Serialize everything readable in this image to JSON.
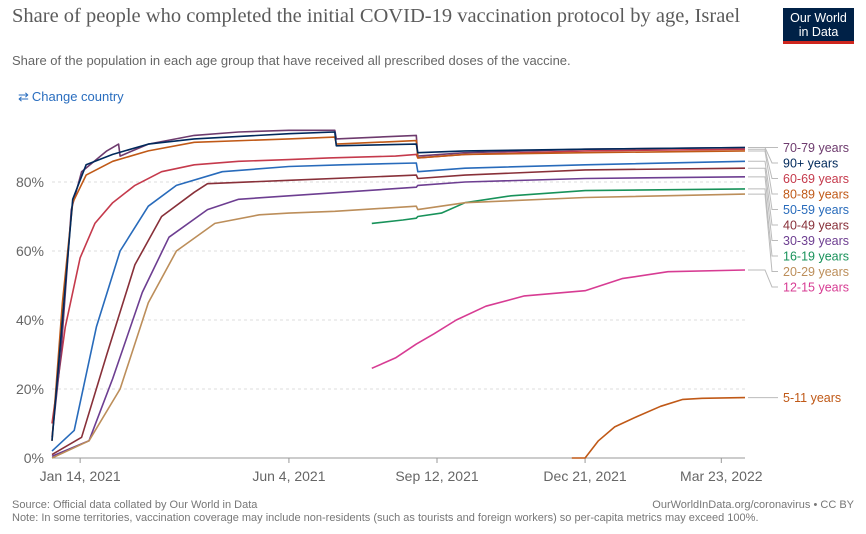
{
  "header": {
    "title": "Share of people who completed the initial COVID-19 vaccination protocol by age, Israel",
    "subtitle": "Share of the population in each age group that have received all prescribed doses of the vaccine.",
    "logo_line1": "Our World",
    "logo_line2": "in Data",
    "change_country_icon": "swap-arrows-icon",
    "change_country_label": "Change country"
  },
  "footer": {
    "source": "Source: Official data collated by Our World in Data",
    "url": "OurWorldInData.org/coronavirus • CC BY",
    "note": "Note: In some territories, vaccination coverage may include non-residents (such as tourists and foreign workers) so per-capita metrics may exceed 100%."
  },
  "chart_data": {
    "type": "line",
    "title": "Share of people who completed the initial COVID-19 vaccination protocol by age, Israel",
    "ylim": [
      0,
      100
    ],
    "yticks": [
      0,
      20,
      40,
      60,
      80
    ],
    "ytick_labels": [
      "0%",
      "20%",
      "40%",
      "60%",
      "80%"
    ],
    "xlim": [
      "2020-12-26",
      "2022-04-08"
    ],
    "xticks": [
      "2021-01-14",
      "2021-06-04",
      "2021-09-12",
      "2021-12-21",
      "2022-03-23"
    ],
    "xtick_labels": [
      "Jan 14, 2021",
      "Jun 4, 2021",
      "Sep 12, 2021",
      "Dec 21, 2021",
      "Mar 23, 2022"
    ],
    "grid": "horizontal dashed",
    "legend": "right, inline labels",
    "series": [
      {
        "name": "60-69 years",
        "color": "#c53a4c",
        "points": [
          [
            "2020-12-26",
            10
          ],
          [
            "2021-01-04",
            38
          ],
          [
            "2021-01-14",
            58
          ],
          [
            "2021-01-24",
            68
          ],
          [
            "2021-02-05",
            74
          ],
          [
            "2021-02-20",
            79
          ],
          [
            "2021-03-10",
            83
          ],
          [
            "2021-04-01",
            85
          ],
          [
            "2021-05-01",
            86
          ],
          [
            "2021-06-04",
            86.5
          ],
          [
            "2021-07-01",
            87
          ],
          [
            "2021-08-15",
            87.5
          ],
          [
            "2021-08-29",
            88
          ],
          [
            "2021-08-30",
            87
          ],
          [
            "2021-10-01",
            88
          ],
          [
            "2021-12-21",
            89
          ],
          [
            "2022-04-08",
            89.5
          ]
        ]
      },
      {
        "name": "70-79 years",
        "color": "#6e3b6e",
        "points": [
          [
            "2020-12-26",
            6
          ],
          [
            "2021-01-01",
            30
          ],
          [
            "2021-01-08",
            72
          ],
          [
            "2021-01-15",
            83
          ],
          [
            "2021-02-01",
            89
          ],
          [
            "2021-02-09",
            91
          ],
          [
            "2021-02-10",
            87.5
          ],
          [
            "2021-03-01",
            91
          ],
          [
            "2021-04-01",
            93.5
          ],
          [
            "2021-05-01",
            94.5
          ],
          [
            "2021-06-04",
            95
          ],
          [
            "2021-07-05",
            95
          ],
          [
            "2021-07-06",
            92.5
          ],
          [
            "2021-08-29",
            93.5
          ],
          [
            "2021-08-30",
            87.5
          ],
          [
            "2021-10-01",
            88.5
          ],
          [
            "2021-12-21",
            89.5
          ],
          [
            "2022-04-08",
            90
          ]
        ]
      },
      {
        "name": "80-89 years",
        "color": "#c05917",
        "points": [
          [
            "2020-12-26",
            5
          ],
          [
            "2021-01-02",
            45
          ],
          [
            "2021-01-09",
            74
          ],
          [
            "2021-01-18",
            82
          ],
          [
            "2021-02-05",
            86
          ],
          [
            "2021-03-01",
            89
          ],
          [
            "2021-04-01",
            91.5
          ],
          [
            "2021-06-04",
            92.5
          ],
          [
            "2021-07-05",
            93
          ],
          [
            "2021-07-06",
            91
          ],
          [
            "2021-08-29",
            92
          ],
          [
            "2021-08-30",
            87
          ],
          [
            "2021-10-01",
            88
          ],
          [
            "2021-12-21",
            88.5
          ],
          [
            "2022-04-08",
            89
          ]
        ]
      },
      {
        "name": "50-59 years",
        "color": "#286bbb",
        "points": [
          [
            "2020-12-26",
            2
          ],
          [
            "2021-01-10",
            8
          ],
          [
            "2021-01-25",
            38
          ],
          [
            "2021-02-10",
            60
          ],
          [
            "2021-03-01",
            73
          ],
          [
            "2021-03-20",
            79
          ],
          [
            "2021-04-20",
            83
          ],
          [
            "2021-06-04",
            84.5
          ],
          [
            "2021-07-10",
            85
          ],
          [
            "2021-08-29",
            85.5
          ],
          [
            "2021-08-30",
            83
          ],
          [
            "2021-10-01",
            84
          ],
          [
            "2021-12-21",
            85
          ],
          [
            "2022-04-08",
            86
          ]
        ]
      },
      {
        "name": "40-49 years",
        "color": "#883039",
        "points": [
          [
            "2020-12-26",
            1
          ],
          [
            "2021-01-15",
            6
          ],
          [
            "2021-02-01",
            30
          ],
          [
            "2021-02-20",
            56
          ],
          [
            "2021-03-10",
            70
          ],
          [
            "2021-04-01",
            77
          ],
          [
            "2021-04-10",
            79.5
          ],
          [
            "2021-06-04",
            80.5
          ],
          [
            "2021-08-29",
            82
          ],
          [
            "2021-08-30",
            81
          ],
          [
            "2021-10-01",
            82
          ],
          [
            "2021-12-21",
            83.5
          ],
          [
            "2022-04-08",
            84
          ]
        ]
      },
      {
        "name": "30-39 years",
        "color": "#6d3e91",
        "points": [
          [
            "2020-12-26",
            0.5
          ],
          [
            "2021-01-20",
            5
          ],
          [
            "2021-02-05",
            23
          ],
          [
            "2021-02-25",
            48
          ],
          [
            "2021-03-15",
            64
          ],
          [
            "2021-04-10",
            72
          ],
          [
            "2021-05-01",
            75
          ],
          [
            "2021-06-04",
            76
          ],
          [
            "2021-08-29",
            78.5
          ],
          [
            "2021-08-30",
            79
          ],
          [
            "2021-10-01",
            80
          ],
          [
            "2021-12-21",
            81
          ],
          [
            "2022-04-08",
            81.5
          ]
        ]
      },
      {
        "name": "90+ years",
        "color": "#00295b",
        "points": [
          [
            "2020-12-26",
            5
          ],
          [
            "2021-01-02",
            40
          ],
          [
            "2021-01-09",
            75
          ],
          [
            "2021-01-18",
            85
          ],
          [
            "2021-02-05",
            88
          ],
          [
            "2021-03-01",
            91
          ],
          [
            "2021-04-01",
            92.5
          ],
          [
            "2021-06-04",
            94
          ],
          [
            "2021-07-05",
            94.5
          ],
          [
            "2021-07-06",
            90.5
          ],
          [
            "2021-08-29",
            91
          ],
          [
            "2021-08-30",
            88.5
          ],
          [
            "2021-10-01",
            89
          ],
          [
            "2021-12-21",
            89.5
          ],
          [
            "2022-04-08",
            90
          ]
        ]
      },
      {
        "name": "16-19 years",
        "color": "#18925a",
        "points": [
          [
            "2021-07-30",
            68
          ],
          [
            "2021-08-20",
            69
          ],
          [
            "2021-08-29",
            69.5
          ],
          [
            "2021-08-30",
            70
          ],
          [
            "2021-09-15",
            71
          ],
          [
            "2021-10-01",
            74
          ],
          [
            "2021-11-01",
            76
          ],
          [
            "2021-12-21",
            77.5
          ],
          [
            "2022-04-08",
            78
          ]
        ]
      },
      {
        "name": "20-29 years",
        "color": "#bc8e5a",
        "points": [
          [
            "2020-12-26",
            0
          ],
          [
            "2021-01-20",
            5
          ],
          [
            "2021-02-10",
            20
          ],
          [
            "2021-03-01",
            45
          ],
          [
            "2021-03-20",
            60
          ],
          [
            "2021-04-15",
            68
          ],
          [
            "2021-05-15",
            70.5
          ],
          [
            "2021-06-04",
            71
          ],
          [
            "2021-07-05",
            71.5
          ],
          [
            "2021-08-29",
            73
          ],
          [
            "2021-08-30",
            72
          ],
          [
            "2021-10-01",
            74
          ],
          [
            "2021-12-21",
            75.5
          ],
          [
            "2022-04-08",
            76.5
          ]
        ]
      },
      {
        "name": "12-15 years",
        "color": "#d73c93",
        "points": [
          [
            "2021-07-30",
            26
          ],
          [
            "2021-08-15",
            29
          ],
          [
            "2021-08-29",
            33
          ],
          [
            "2021-09-10",
            36
          ],
          [
            "2021-09-25",
            40
          ],
          [
            "2021-10-15",
            44
          ],
          [
            "2021-11-10",
            47
          ],
          [
            "2021-12-21",
            48.5
          ],
          [
            "2022-01-15",
            52
          ],
          [
            "2022-02-15",
            54
          ],
          [
            "2022-04-08",
            54.5
          ]
        ]
      },
      {
        "name": "5-11 years",
        "color": "#c05917",
        "points": [
          [
            "2021-12-12",
            0
          ],
          [
            "2021-12-21",
            0
          ],
          [
            "2021-12-30",
            5
          ],
          [
            "2022-01-10",
            9
          ],
          [
            "2022-01-25",
            12
          ],
          [
            "2022-02-10",
            15
          ],
          [
            "2022-02-25",
            17
          ],
          [
            "2022-03-10",
            17.3
          ],
          [
            "2022-04-08",
            17.5
          ]
        ]
      }
    ]
  }
}
